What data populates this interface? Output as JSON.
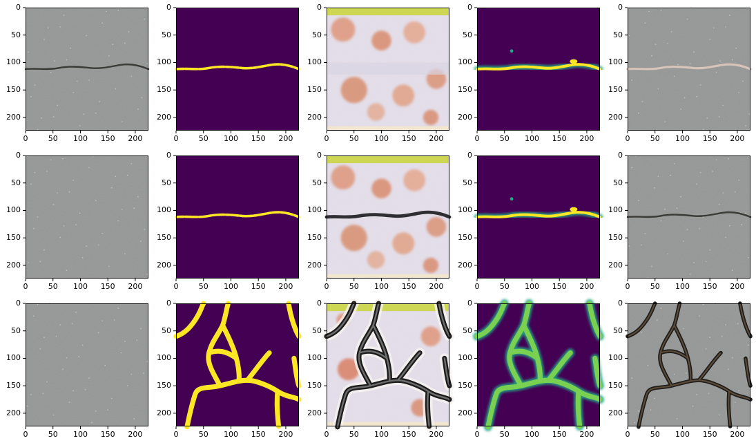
{
  "figure": {
    "layout": {
      "rows": 3,
      "cols": 5
    },
    "colors": {
      "viridis_dark": "#440154",
      "viridis_green": "#22a884",
      "viridis_yellow": "#fde725",
      "gray_texture": "#8f9190",
      "axis": "#000000"
    },
    "axis": {
      "x_ticks": [
        0,
        50,
        100,
        150,
        200
      ],
      "y_ticks": [
        0,
        50,
        100,
        150,
        200
      ],
      "x_range": [
        0,
        224
      ],
      "y_range": [
        0,
        224
      ]
    },
    "rows": [
      {
        "panels": [
          {
            "kind": "photo-crack",
            "crack": "horizontal-thin"
          },
          {
            "kind": "mask-binary",
            "crack": "horizontal-thin"
          },
          {
            "kind": "texture",
            "crack": "none"
          },
          {
            "kind": "mask-soft",
            "crack": "horizontal-thin"
          },
          {
            "kind": "photo-crack",
            "crack": "horizontal-light"
          }
        ]
      },
      {
        "panels": [
          {
            "kind": "photo",
            "crack": "none"
          },
          {
            "kind": "mask-binary",
            "crack": "horizontal-thin"
          },
          {
            "kind": "texture",
            "crack": "horizontal-dark"
          },
          {
            "kind": "mask-soft",
            "crack": "horizontal-thin"
          },
          {
            "kind": "photo-crack",
            "crack": "horizontal-dark"
          }
        ]
      },
      {
        "panels": [
          {
            "kind": "photo",
            "crack": "none"
          },
          {
            "kind": "mask-binary",
            "crack": "network"
          },
          {
            "kind": "texture-network",
            "crack": "network"
          },
          {
            "kind": "mask-soft",
            "crack": "network"
          },
          {
            "kind": "photo-crack",
            "crack": "network"
          }
        ]
      }
    ]
  }
}
